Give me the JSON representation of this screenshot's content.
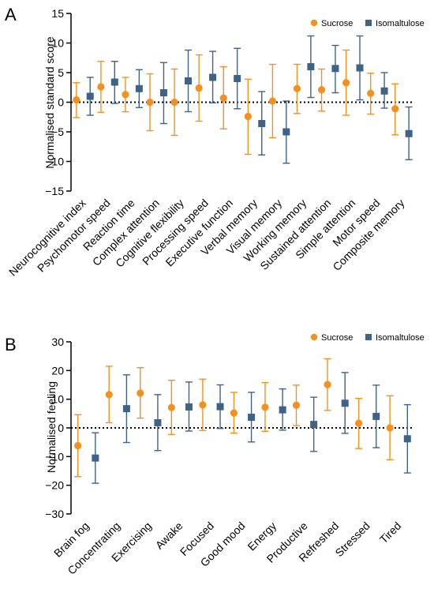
{
  "colors": {
    "sucrose": "#F5901E",
    "isomaltulose": "#3E6387",
    "axis": "#000000"
  },
  "legend": {
    "sucrose": "Sucrose",
    "isomaltulose": "Isomaltulose"
  },
  "chart_data": [
    {
      "panel": "A",
      "type": "scatter",
      "ylabel": "Normalised standard score",
      "ylim": [
        -15,
        15
      ],
      "yticks": [
        -15,
        -10,
        -5,
        0,
        5,
        10,
        15
      ],
      "zero_line": "dotted",
      "categories": [
        "Neurocognitive index",
        "Psychomotor speed",
        "Reaction time",
        "Complex attention",
        "Cognitive flexibility",
        "Processing speed",
        "Executive function",
        "Verbal memory",
        "Visual memory",
        "Working memory",
        "Sustained attention",
        "Simple attention",
        "Motor speed",
        "Composite memory"
      ],
      "series": [
        {
          "name": "Sucrose",
          "marker": "circle",
          "values": [
            0.4,
            2.6,
            1.3,
            0.0,
            0.0,
            2.4,
            0.7,
            -2.4,
            0.2,
            2.3,
            2.1,
            3.3,
            1.5,
            -1.1
          ],
          "lower": [
            -2.6,
            -1.7,
            -1.6,
            -4.8,
            -5.6,
            -3.2,
            -4.5,
            -8.8,
            -6.0,
            -1.9,
            -1.5,
            -2.2,
            -2.0,
            -5.5
          ],
          "upper": [
            3.3,
            6.9,
            4.2,
            4.8,
            5.6,
            8.0,
            6.0,
            3.9,
            6.4,
            6.4,
            5.6,
            8.8,
            4.9,
            3.1
          ]
        },
        {
          "name": "Isomaltulose",
          "marker": "square",
          "values": [
            1.0,
            3.4,
            2.3,
            1.6,
            3.6,
            4.2,
            4.0,
            -3.6,
            -5.0,
            6.0,
            5.7,
            5.8,
            1.9,
            -5.3
          ],
          "lower": [
            -2.2,
            -0.2,
            -0.9,
            -3.6,
            -1.6,
            -0.1,
            -1.1,
            -8.9,
            -10.3,
            0.8,
            1.6,
            0.4,
            -1.0,
            -9.7
          ],
          "upper": [
            4.2,
            6.9,
            5.5,
            6.7,
            8.8,
            8.6,
            9.1,
            1.8,
            0.2,
            11.2,
            9.6,
            11.2,
            5.0,
            -0.8
          ]
        }
      ]
    },
    {
      "panel": "B",
      "type": "scatter",
      "ylabel": "Normalised feeling",
      "ylim": [
        -30,
        30
      ],
      "yticks": [
        -30,
        -20,
        -10,
        0,
        10,
        20,
        30
      ],
      "zero_line": "dotted",
      "categories": [
        "Brain fog",
        "Concentrating",
        "Exercising",
        "Awake",
        "Focused",
        "Good mood",
        "Energy",
        "Productive",
        "Refreshed",
        "Stressed",
        "Tired"
      ],
      "series": [
        {
          "name": "Sucrose",
          "marker": "circle",
          "values": [
            -6.2,
            11.6,
            12.1,
            7.1,
            8.0,
            5.2,
            7.2,
            7.9,
            15.1,
            1.6,
            0.0
          ],
          "lower": [
            -17.0,
            1.8,
            3.4,
            -2.3,
            -0.9,
            -1.8,
            -1.2,
            0.8,
            6.1,
            -7.2,
            -11.1
          ],
          "upper": [
            4.6,
            21.5,
            21.0,
            16.6,
            17.0,
            12.4,
            15.8,
            14.9,
            24.1,
            10.3,
            11.2
          ]
        },
        {
          "name": "Isomaltulose",
          "marker": "square",
          "values": [
            -10.5,
            6.7,
            1.8,
            7.3,
            7.4,
            3.7,
            6.3,
            1.2,
            8.6,
            4.0,
            -3.8
          ],
          "lower": [
            -19.3,
            -5.1,
            -7.9,
            -1.1,
            -0.2,
            -4.9,
            -0.8,
            -8.2,
            -1.9,
            -6.9,
            -15.7
          ],
          "upper": [
            -1.7,
            18.5,
            11.6,
            16.0,
            15.0,
            12.4,
            13.6,
            10.7,
            19.3,
            14.9,
            8.1
          ]
        }
      ]
    }
  ]
}
